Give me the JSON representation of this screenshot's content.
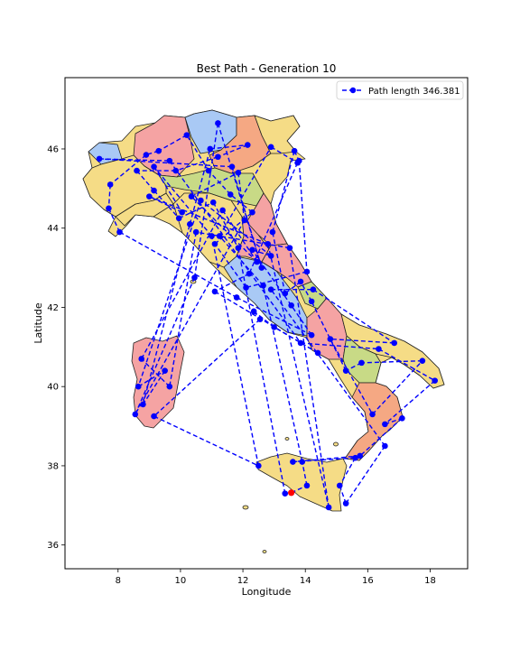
{
  "chart_data": {
    "type": "line",
    "title": "Best Path - Generation 10",
    "xlabel": "Longitude",
    "ylabel": "Latitude",
    "xlim": [
      6.3,
      19.2
    ],
    "ylim": [
      35.4,
      47.8
    ],
    "xticks": [
      8,
      10,
      12,
      14,
      16,
      18
    ],
    "yticks": [
      36,
      38,
      40,
      42,
      44,
      46
    ],
    "grid": false,
    "legend_position": "top-right",
    "series": [
      {
        "name": "Path length 346.381",
        "color": "#0000ff",
        "line_style": "dashed",
        "marker": "circle",
        "points": [
          [
            13.55,
            37.32
          ],
          [
            14.05,
            37.5
          ],
          [
            13.9,
            38.1
          ],
          [
            12.65,
            42.55
          ],
          [
            11.25,
            43.8
          ],
          [
            12.9,
            46.05
          ],
          [
            13.75,
            45.65
          ],
          [
            12.2,
            42.85
          ],
          [
            11.1,
            42.4
          ],
          [
            14.4,
            40.85
          ],
          [
            13.0,
            41.5
          ],
          [
            12.35,
            41.9
          ],
          [
            12.55,
            41.7
          ],
          [
            9.15,
            39.25
          ],
          [
            12.5,
            38.0
          ],
          [
            11.0,
            43.8
          ],
          [
            9.15,
            45.55
          ],
          [
            10.05,
            44.4
          ],
          [
            9.0,
            44.8
          ],
          [
            12.8,
            43.6
          ],
          [
            14.75,
            36.95
          ],
          [
            13.5,
            43.5
          ],
          [
            10.5,
            43.9
          ],
          [
            9.65,
            40.0
          ],
          [
            8.75,
            40.7
          ],
          [
            11.35,
            44.45
          ],
          [
            12.45,
            43.15
          ],
          [
            10.35,
            44.8
          ],
          [
            11.85,
            45.4
          ],
          [
            12.05,
            44.2
          ],
          [
            8.55,
            39.3
          ],
          [
            10.45,
            42.75
          ],
          [
            11.2,
            46.65
          ],
          [
            12.6,
            43.0
          ],
          [
            11.65,
            45.55
          ],
          [
            7.4,
            45.75
          ],
          [
            9.65,
            45.7
          ],
          [
            13.85,
            41.1
          ],
          [
            16.35,
            40.95
          ],
          [
            18.15,
            40.15
          ],
          [
            16.55,
            39.05
          ],
          [
            17.1,
            39.2
          ],
          [
            15.75,
            38.25
          ],
          [
            13.6,
            38.1
          ],
          [
            15.6,
            38.2
          ],
          [
            15.1,
            37.5
          ],
          [
            15.3,
            37.05
          ],
          [
            16.55,
            38.5
          ],
          [
            12.9,
            42.45
          ],
          [
            14.25,
            42.45
          ],
          [
            16.85,
            41.1
          ],
          [
            14.8,
            41.2
          ],
          [
            16.15,
            39.3
          ],
          [
            17.75,
            40.65
          ],
          [
            15.8,
            40.6
          ],
          [
            15.3,
            40.4
          ],
          [
            14.2,
            42.15
          ],
          [
            13.85,
            42.65
          ],
          [
            13.35,
            42.35
          ],
          [
            12.95,
            43.9
          ],
          [
            13.65,
            45.95
          ],
          [
            13.8,
            45.7
          ],
          [
            14.05,
            42.9
          ],
          [
            12.1,
            42.5
          ],
          [
            11.1,
            43.6
          ],
          [
            12.3,
            44.4
          ],
          [
            11.6,
            44.85
          ],
          [
            10.9,
            45.45
          ],
          [
            10.2,
            46.35
          ],
          [
            9.3,
            45.95
          ],
          [
            8.9,
            45.85
          ],
          [
            7.75,
            45.1
          ],
          [
            7.7,
            44.5
          ],
          [
            8.05,
            43.9
          ],
          [
            11.8,
            42.25
          ],
          [
            14.2,
            41.3
          ],
          [
            13.55,
            42.05
          ],
          [
            12.3,
            43.45
          ],
          [
            12.9,
            43.3
          ],
          [
            10.65,
            44.7
          ],
          [
            8.65,
            40.0
          ],
          [
            9.5,
            40.4
          ],
          [
            8.8,
            39.55
          ],
          [
            10.3,
            44.1
          ],
          [
            10.95,
            46.0
          ],
          [
            12.15,
            46.1
          ],
          [
            11.2,
            45.8
          ],
          [
            9.85,
            45.45
          ],
          [
            8.6,
            45.45
          ],
          [
            9.15,
            44.95
          ],
          [
            9.95,
            44.25
          ],
          [
            11.05,
            44.65
          ],
          [
            11.85,
            43.5
          ],
          [
            13.35,
            37.3
          ]
        ]
      }
    ],
    "start_point": {
      "x": 13.55,
      "y": 37.32,
      "color": "#ff0000"
    },
    "legend": {
      "label": "Path length 346.381"
    }
  }
}
